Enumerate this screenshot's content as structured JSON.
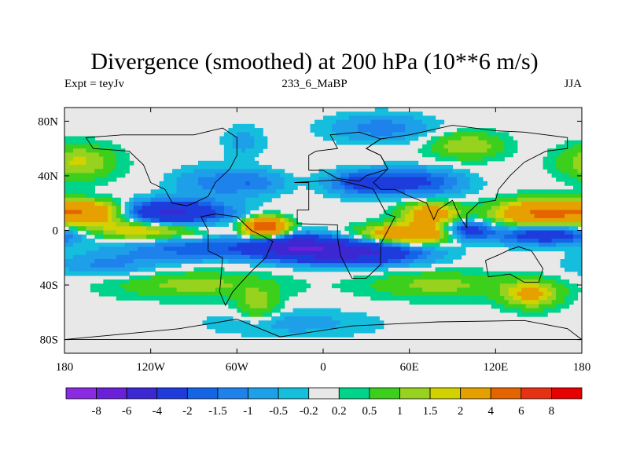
{
  "title": "Divergence (smoothed) at 200 hPa (10**6 m/s)",
  "subtitle_left": "Expt = teyJv",
  "subtitle_center": "233_6_MaBP",
  "subtitle_right": "JJA",
  "chart_data": {
    "type": "heatmap",
    "title": "Divergence (smoothed) at 200 hPa (10**6 m/s)",
    "variable": "Divergence (smoothed) at 200 hPa",
    "units": "10**6 m/s",
    "season": "JJA",
    "experiment": "teyJv",
    "x_range": [
      -180,
      180
    ],
    "y_range": [
      -90,
      90
    ],
    "x_ticks": [
      {
        "value": -180,
        "label": "180"
      },
      {
        "value": -120,
        "label": "120W"
      },
      {
        "value": -60,
        "label": "60W"
      },
      {
        "value": 0,
        "label": "0"
      },
      {
        "value": 60,
        "label": "60E"
      },
      {
        "value": 120,
        "label": "120E"
      },
      {
        "value": 180,
        "label": "180"
      }
    ],
    "y_ticks": [
      {
        "value": 80,
        "label": "80N"
      },
      {
        "value": 40,
        "label": "40N"
      },
      {
        "value": 0,
        "label": "0"
      },
      {
        "value": -40,
        "label": "40S"
      },
      {
        "value": -80,
        "label": "80S"
      }
    ],
    "levels": [
      "-8",
      "-6",
      "-4",
      "-2",
      "-1.5",
      "-1",
      "-0.5",
      "-0.2",
      "0.2",
      "0.5",
      "1",
      "1.5",
      "2",
      "4",
      "6",
      "8"
    ],
    "level_values": [
      -8,
      -6,
      -4,
      -2,
      -1.5,
      -1,
      -0.5,
      -0.2,
      0.2,
      0.5,
      1,
      1.5,
      2,
      4,
      6,
      8
    ],
    "colors": [
      "#8a2be2",
      "#6a1fd9",
      "#3c28d2",
      "#1e3cdc",
      "#1464e6",
      "#1e82ec",
      "#1ea0e8",
      "#14bedc",
      "#e8e8e8",
      "#00d38a",
      "#3ccf1c",
      "#96d21e",
      "#d2d200",
      "#e6a000",
      "#e66400",
      "#e63214",
      "#e60000"
    ],
    "features": [
      {
        "name": "north_pacific_pos",
        "lon": -170,
        "lat": 50,
        "amp": 1.6,
        "slon": 18,
        "slat": 9
      },
      {
        "name": "east_pacific_pos",
        "lon": -160,
        "lat": 13,
        "amp": 4.2,
        "slon": 22,
        "slat": 6
      },
      {
        "name": "central_pacific_neg",
        "lon": -110,
        "lat": 13,
        "amp": -4.6,
        "slon": 28,
        "slat": 6
      },
      {
        "name": "central_america_neg",
        "lon": -75,
        "lat": 35,
        "amp": -1.2,
        "slon": 20,
        "slat": 8
      },
      {
        "name": "north_atlantic_neg",
        "lon": -45,
        "lat": 35,
        "amp": -1.0,
        "slon": 14,
        "slat": 6
      },
      {
        "name": "greenland_neg",
        "lon": -55,
        "lat": 65,
        "amp": -0.7,
        "slon": 10,
        "slat": 8
      },
      {
        "name": "amazon_pos",
        "lon": -40,
        "lat": 2,
        "amp": 6.0,
        "slon": 10,
        "slat": 5
      },
      {
        "name": "south_pacific_pos",
        "lon": -125,
        "lat": 0,
        "amp": 2.2,
        "slon": 28,
        "slat": 5
      },
      {
        "name": "s_pacific_neg1",
        "lon": -90,
        "lat": -13,
        "amp": -1.8,
        "slon": 35,
        "slat": 6
      },
      {
        "name": "s_atlantic_neg",
        "lon": -20,
        "lat": -12,
        "amp": -4.8,
        "slon": 22,
        "slat": 6
      },
      {
        "name": "africa_neg",
        "lon": 25,
        "lat": -16,
        "amp": -4.4,
        "slon": 30,
        "slat": 6
      },
      {
        "name": "indian_ocean_pos",
        "lon": 60,
        "lat": -3,
        "amp": 4.0,
        "slon": 22,
        "slat": 5
      },
      {
        "name": "india_pos",
        "lon": 75,
        "lat": 12,
        "amp": 3.0,
        "slon": 14,
        "slat": 6
      },
      {
        "name": "se_asia_neg",
        "lon": 100,
        "lat": 0,
        "amp": -3.0,
        "slon": 12,
        "slat": 5
      },
      {
        "name": "w_pacific_pos",
        "lon": 150,
        "lat": 12,
        "amp": 4.0,
        "slon": 22,
        "slat": 7
      },
      {
        "name": "w_pacific_neg",
        "lon": 155,
        "lat": -3,
        "amp": -3.2,
        "slon": 24,
        "slat": 5
      },
      {
        "name": "europe_neg",
        "lon": 30,
        "lat": 35,
        "amp": -2.6,
        "slon": 18,
        "slat": 6
      },
      {
        "name": "asia_neg",
        "lon": 70,
        "lat": 35,
        "amp": -2.0,
        "slon": 20,
        "slat": 7
      },
      {
        "name": "siberia_pos",
        "lon": 100,
        "lat": 62,
        "amp": 1.5,
        "slon": 18,
        "slat": 7
      },
      {
        "name": "arctic_neg",
        "lon": 40,
        "lat": 75,
        "amp": -1.3,
        "slon": 25,
        "slat": 7
      },
      {
        "name": "s_ocean_pos",
        "lon": -90,
        "lat": -40,
        "amp": 1.2,
        "slon": 40,
        "slat": 7
      },
      {
        "name": "s_indian_pos",
        "lon": 80,
        "lat": -40,
        "amp": 1.2,
        "slon": 35,
        "slat": 7
      },
      {
        "name": "australia_pos",
        "lon": 145,
        "lat": -47,
        "amp": 2.2,
        "slon": 14,
        "slat": 7
      },
      {
        "name": "s_atlantic_pos",
        "lon": -45,
        "lat": -55,
        "amp": 1.3,
        "slon": 10,
        "slat": 8
      },
      {
        "name": "antarctic_neg",
        "lon": -20,
        "lat": -68,
        "amp": -0.7,
        "slon": 40,
        "slat": 7
      },
      {
        "name": "s_pacific_neg2",
        "lon": -150,
        "lat": -25,
        "amp": -1.1,
        "slon": 25,
        "slat": 6
      }
    ],
    "continent_outline": [
      [
        -40,
        70
      ],
      [
        -30,
        70
      ],
      [
        -30,
        65
      ],
      [
        -40,
        60
      ],
      [
        -45,
        62
      ],
      [
        -48,
        70
      ],
      [
        -40,
        70
      ]
    ]
  }
}
